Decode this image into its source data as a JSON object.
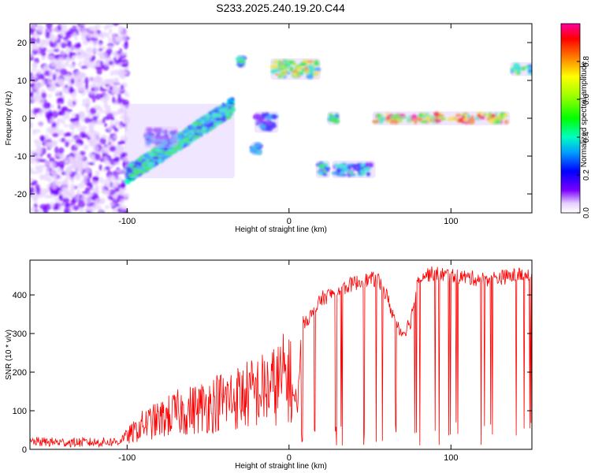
{
  "title": "S233.2025.240.19.20.C44",
  "chart_data": [
    {
      "type": "heatmap",
      "xlabel": "Height of straight line (km)",
      "ylabel": "Frequency (Hz)",
      "xlim": [
        -160,
        150
      ],
      "ylim": [
        -25,
        25
      ],
      "x_ticks": [
        -100,
        0,
        100
      ],
      "y_ticks": [
        -20,
        -10,
        0,
        10,
        20
      ],
      "colorbar": {
        "label": "Normalized spectral amplitude",
        "range": [
          0,
          1
        ],
        "ticks": [
          0.0,
          0.2,
          0.4,
          0.6,
          0.8
        ]
      },
      "features": [
        {
          "x0": -160,
          "x1": -100,
          "y0": -25,
          "y1": 25,
          "amp": 0.12
        },
        {
          "x0": -100,
          "x1": -35,
          "y0": -15,
          "y1": 3,
          "amp": 0.45,
          "trend": "rising"
        },
        {
          "x0": -88,
          "x1": -70,
          "y0": -7,
          "y1": -3,
          "amp": 0.3
        },
        {
          "x0": -31,
          "x1": -28,
          "y0": 14,
          "y1": 16,
          "amp": 0.45
        },
        {
          "x0": -22,
          "x1": -18,
          "y0": -9,
          "y1": -7,
          "amp": 0.35
        },
        {
          "x0": -20,
          "x1": -8,
          "y0": -3,
          "y1": 1,
          "amp": 0.3
        },
        {
          "x0": -10,
          "x1": 18,
          "y0": 11,
          "y1": 15,
          "amp": 0.65
        },
        {
          "x0": 18,
          "x1": 24,
          "y0": -15,
          "y1": -12,
          "amp": 0.4
        },
        {
          "x0": 25,
          "x1": 30,
          "y0": -1,
          "y1": 1,
          "amp": 0.55
        },
        {
          "x0": 28,
          "x1": 52,
          "y0": -15,
          "y1": -12,
          "amp": 0.4
        },
        {
          "x0": 53,
          "x1": 135,
          "y0": -1,
          "y1": 1,
          "amp": 0.85
        },
        {
          "x0": 138,
          "x1": 150,
          "y0": 12,
          "y1": 14,
          "amp": 0.5
        }
      ]
    },
    {
      "type": "line",
      "xlabel": "Height of straight line (km)",
      "ylabel": "SNR (10 * v/v)",
      "xlim": [
        -160,
        150
      ],
      "ylim": [
        0,
        490
      ],
      "x_ticks": [
        -100,
        0,
        100
      ],
      "y_ticks": [
        0,
        100,
        200,
        300,
        400
      ],
      "series": [
        {
          "color": "#ff0000",
          "x": [
            -160,
            -140,
            -120,
            -105,
            -100,
            -95,
            -90,
            -80,
            -70,
            -60,
            -50,
            -40,
            -30,
            -20,
            -10,
            0,
            5,
            8,
            10,
            15,
            20,
            30,
            40,
            50,
            55,
            60,
            65,
            70,
            75,
            80,
            90,
            100,
            110,
            120,
            130,
            140,
            150
          ],
          "y": [
            20,
            18,
            18,
            20,
            40,
            55,
            75,
            90,
            110,
            120,
            135,
            150,
            160,
            175,
            190,
            230,
            100,
            320,
            335,
            350,
            390,
            410,
            430,
            440,
            440,
            400,
            340,
            300,
            330,
            450,
            455,
            450,
            445,
            440,
            445,
            450,
            455
          ],
          "dropouts_x_range": [
            5,
            150
          ],
          "dropouts_min": 10
        }
      ]
    }
  ]
}
